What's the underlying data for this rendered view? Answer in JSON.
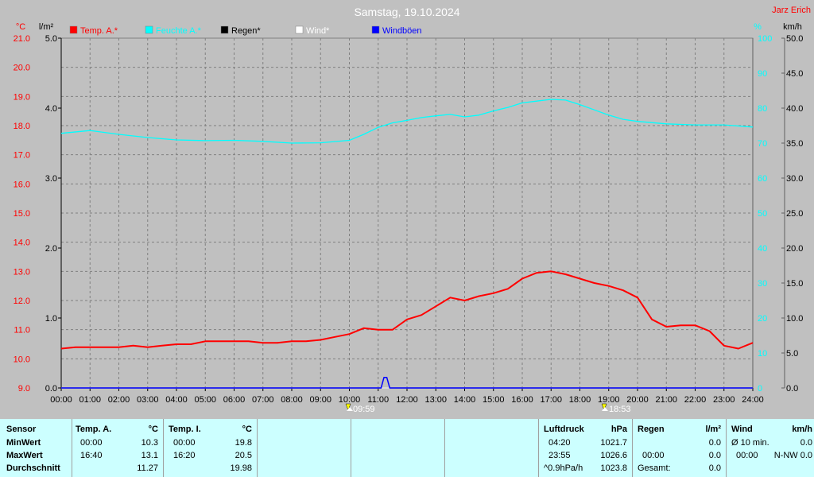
{
  "header": {
    "title": "Samstag, 19.10.2024",
    "author": "Jarz Erich"
  },
  "axes": {
    "temp_unit": "°C",
    "rain_unit": "l/m²",
    "humidity_unit": "%",
    "wind_unit": "km/h"
  },
  "legend": [
    {
      "label": "Temp. A.*",
      "color": "#ff0000"
    },
    {
      "label": "Feuchte A.*",
      "color": "#00ffff"
    },
    {
      "label": "Regen*",
      "color": "#000000"
    },
    {
      "label": "Wind*",
      "color": "#ffffff"
    },
    {
      "label": "Windböen",
      "color": "#0000ff"
    }
  ],
  "chart_data": {
    "type": "line",
    "x_axis": {
      "ticks": [
        "00:00",
        "01:00",
        "02:00",
        "03:00",
        "04:00",
        "05:00",
        "06:00",
        "07:00",
        "08:00",
        "09:00",
        "10:00",
        "11:00",
        "12:00",
        "13:00",
        "14:00",
        "15:00",
        "16:00",
        "17:00",
        "18:00",
        "19:00",
        "20:00",
        "21:00",
        "22:00",
        "23:00",
        "24:00"
      ],
      "range": [
        0,
        24
      ]
    },
    "temp_axis": {
      "range": [
        9.0,
        21.0
      ],
      "ticks": [
        "9.0",
        "10.0",
        "11.0",
        "12.0",
        "13.0",
        "14.0",
        "15.0",
        "16.0",
        "17.0",
        "18.0",
        "19.0",
        "20.0",
        "21.0"
      ]
    },
    "rain_axis": {
      "range": [
        0.0,
        5.0
      ],
      "ticks": [
        "0.0",
        "1.0",
        "2.0",
        "3.0",
        "4.0",
        "5.0"
      ]
    },
    "humidity_axis": {
      "range": [
        0,
        100
      ],
      "ticks": [
        "0",
        "10",
        "20",
        "30",
        "40",
        "50",
        "60",
        "70",
        "80",
        "90",
        "100"
      ]
    },
    "wind_axis": {
      "range": [
        0.0,
        50.0
      ],
      "ticks": [
        "0.0",
        "5.0",
        "10.0",
        "15.0",
        "20.0",
        "25.0",
        "30.0",
        "35.0",
        "40.0",
        "45.0",
        "50.0"
      ]
    },
    "grid": true,
    "legend_position": "top",
    "sunrise": "09:59",
    "sunset": "18:53",
    "series": [
      {
        "name": "Temp. A.*",
        "axis": "temp",
        "color": "#ff0000",
        "x": [
          0,
          0.5,
          1,
          1.5,
          2,
          2.5,
          3,
          3.5,
          4,
          4.5,
          5,
          5.5,
          6,
          6.5,
          7,
          7.5,
          8,
          8.5,
          9,
          9.5,
          10,
          10.5,
          11,
          11.5,
          12,
          12.5,
          13,
          13.5,
          14,
          14.5,
          15,
          15.5,
          16,
          16.5,
          17,
          17.5,
          18,
          18.5,
          19,
          19.5,
          20,
          20.5,
          21,
          21.5,
          22,
          22.5,
          23,
          23.5,
          24
        ],
        "y": [
          10.35,
          10.4,
          10.4,
          10.4,
          10.4,
          10.45,
          10.4,
          10.45,
          10.5,
          10.5,
          10.6,
          10.6,
          10.6,
          10.6,
          10.55,
          10.55,
          10.6,
          10.6,
          10.65,
          10.75,
          10.85,
          11.05,
          11.0,
          11.0,
          11.35,
          11.5,
          11.8,
          12.1,
          12.0,
          12.15,
          12.25,
          12.4,
          12.75,
          12.95,
          13.0,
          12.9,
          12.75,
          12.6,
          12.5,
          12.35,
          12.1,
          11.35,
          11.1,
          11.15,
          11.15,
          10.95,
          10.45,
          10.35,
          10.55
        ]
      },
      {
        "name": "Feuchte A.*",
        "axis": "humidity",
        "color": "#00ffff",
        "x": [
          0,
          1,
          2,
          3,
          4,
          5,
          6,
          7,
          8,
          9,
          10,
          10.5,
          11,
          11.5,
          12,
          12.5,
          13,
          13.5,
          14,
          14.5,
          15,
          15.5,
          16,
          16.5,
          17,
          17.5,
          18,
          18.5,
          19,
          19.5,
          20,
          21,
          22,
          23,
          24
        ],
        "y": [
          72.8,
          73.6,
          72.5,
          71.6,
          70.9,
          70.7,
          70.8,
          70.5,
          70.0,
          70.1,
          70.8,
          72.5,
          74.5,
          75.8,
          76.5,
          77.3,
          77.8,
          78.2,
          77.5,
          78.0,
          79.2,
          80.2,
          81.5,
          82.0,
          82.5,
          82.3,
          81.0,
          79.5,
          78.0,
          76.8,
          76.2,
          75.5,
          75.2,
          75.2,
          74.6
        ]
      },
      {
        "name": "Windböen",
        "axis": "wind",
        "color": "#0000ff",
        "x": [
          0,
          11.1,
          11.2,
          11.3,
          11.4,
          24
        ],
        "y": [
          0,
          0,
          1.5,
          1.5,
          0,
          0
        ]
      },
      {
        "name": "Wind*",
        "axis": "wind",
        "color": "#ffffff",
        "x": [
          0,
          24
        ],
        "y": [
          0,
          0
        ]
      },
      {
        "name": "Regen*",
        "axis": "rain",
        "color": "#000000",
        "x": [
          0,
          24
        ],
        "y": [
          0,
          0
        ]
      }
    ]
  },
  "stats": {
    "sensor": {
      "header": "Sensor",
      "rows": [
        "MinWert",
        "MaxWert",
        "Durchschnitt"
      ]
    },
    "temp_a": {
      "header": "Temp. A.",
      "unit": "°C",
      "min_time": "00:00",
      "min": "10.3",
      "max_time": "16:40",
      "max": "13.1",
      "avg": "11.27"
    },
    "temp_i": {
      "header": "Temp. I.",
      "unit": "°C",
      "min_time": "00:00",
      "min": "19.8",
      "max_time": "16:20",
      "max": "20.5",
      "avg": "19.98"
    },
    "pressure": {
      "header": "Luftdruck",
      "unit": "hPa",
      "min_time": "04:20",
      "min": "1021.7",
      "max_time": "23:55",
      "max": "1026.6",
      "trend": "^0.9hPa/h",
      "avg": "1023.8"
    },
    "rain": {
      "header": "Regen",
      "unit": "l/m²",
      "time": "00:00",
      "val1": "0.0",
      "val2": "0.0",
      "total_label": "Gesamt:",
      "total": "0.0"
    },
    "wind": {
      "header": "Wind",
      "unit": "km/h",
      "avg_label": "Ø 10 min.",
      "avg": "0.0",
      "max_time": "00:00",
      "max_dir": "N-NW 0.0"
    }
  }
}
